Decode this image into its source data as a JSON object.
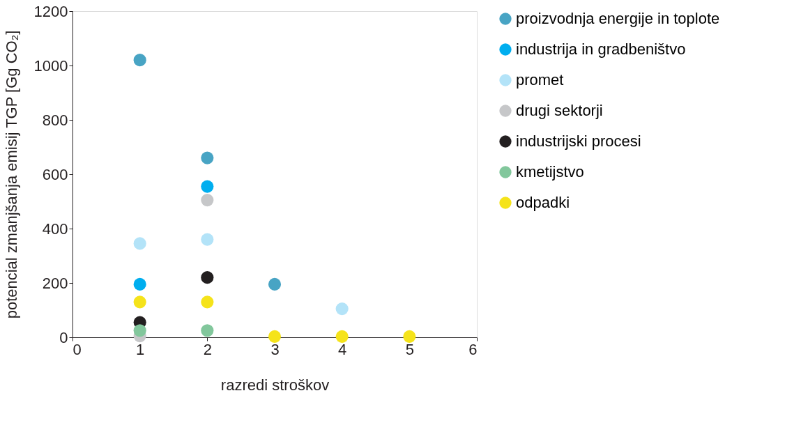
{
  "chart_data": {
    "type": "scatter",
    "xlabel": "razredi stroškov",
    "ylabel": "potencial zmanjšanja emisij TGP [Gg CO₂]",
    "xlim": [
      0,
      6
    ],
    "xticks": [
      0,
      1,
      2,
      3,
      4,
      5,
      6
    ],
    "ylim": [
      0,
      1200
    ],
    "yticks": [
      0,
      200,
      400,
      600,
      800,
      1000,
      1200
    ],
    "grid": false,
    "legend": "right",
    "marker": "circle",
    "series": [
      {
        "name": "proizvodnja energije in toplote",
        "color": "#48a4c4",
        "x": [
          1,
          2,
          3
        ],
        "values": [
          1020,
          660,
          195
        ]
      },
      {
        "name": "industrija in gradbeništvo",
        "color": "#00aeef",
        "x": [
          1,
          2
        ],
        "values": [
          195,
          555
        ]
      },
      {
        "name": "promet",
        "color": "#b3e3f8",
        "x": [
          1,
          2,
          4
        ],
        "values": [
          345,
          360,
          105
        ]
      },
      {
        "name": "drugi sektorji",
        "color": "#c6c7c9",
        "x": [
          1,
          2
        ],
        "values": [
          5,
          505
        ]
      },
      {
        "name": "industrijski procesi",
        "color": "#231f20",
        "x": [
          1,
          2
        ],
        "values": [
          55,
          220
        ]
      },
      {
        "name": "kmetijstvo",
        "color": "#82c79c",
        "x": [
          1,
          2
        ],
        "values": [
          25,
          25
        ]
      },
      {
        "name": "odpadki",
        "color": "#f5e31a",
        "x": [
          1,
          2,
          3,
          4,
          5
        ],
        "values": [
          130,
          130,
          3,
          3,
          3
        ]
      }
    ]
  }
}
